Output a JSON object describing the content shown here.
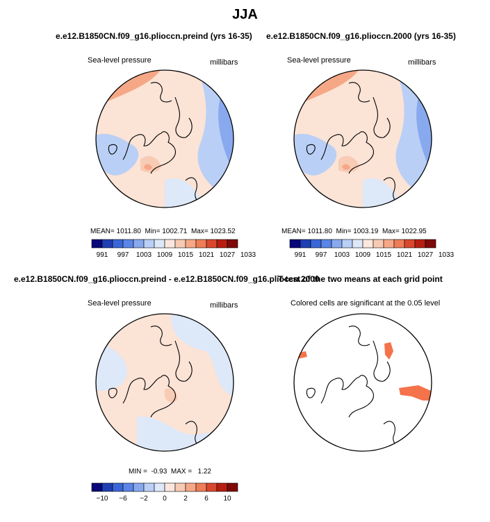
{
  "title": "JJA",
  "panels": {
    "top_left": {
      "title": "e.e12.B1850CN.f09_g16.pliocсn.preind (yrs 16-35)",
      "variable": "Sea-level pressure",
      "units": "millibars",
      "stats": {
        "mean_label": "MEAN=",
        "mean": "1011.80",
        "min_label": "Min=",
        "min": "1002.71",
        "max_label": "Max=",
        "max": "1023.52"
      }
    },
    "top_right": {
      "title": "e.e12.B1850CN.f09_g16.pliocсn.2000 (yrs 16-35)",
      "variable": "Sea-level pressure",
      "units": "millibars",
      "stats": {
        "mean_label": "MEAN=",
        "mean": "1011.80",
        "min_label": "Min=",
        "min": "1003.19",
        "max_label": "Max=",
        "max": "1022.95"
      }
    },
    "bottom_left": {
      "title": "e.e12.B1850CN.f09_g16.pliocсn.preind - e.e12.B1850CN.f09_g16.pliocсn.2000",
      "variable": "Sea-level pressure",
      "units": "millibars",
      "stats": {
        "min_label": "MIN =",
        "min": "-0.93",
        "max_label": "MAX =",
        "max": "1.22"
      }
    },
    "bottom_right": {
      "title": "T-test of the two means at each grid point",
      "subtitle": "Colored cells are significant at the 0.05 level",
      "significant_color": "#f4734a"
    }
  },
  "colorbars": {
    "pressure": {
      "tick_labels": [
        "991",
        "997",
        "1003",
        "1009",
        "1015",
        "1021",
        "1027",
        "1033"
      ],
      "colors": [
        "#08087a",
        "#1f3fb3",
        "#3a67d8",
        "#5b85e6",
        "#88a9ee",
        "#b9cff5",
        "#dde8f9",
        "#fbe7de",
        "#f8cab4",
        "#f6a886",
        "#ee7d58",
        "#d9482e",
        "#b71e12",
        "#7d0a08"
      ]
    },
    "difference": {
      "tick_labels": [
        "−10",
        "−6",
        "−2",
        "0",
        "2",
        "6",
        "10"
      ],
      "colors": [
        "#08087a",
        "#1f3fb3",
        "#3a67d8",
        "#5b85e6",
        "#88a9ee",
        "#b9cff5",
        "#dde8f9",
        "#fbe7de",
        "#f8cab4",
        "#f6a886",
        "#ee7d58",
        "#d9482e",
        "#b71e12",
        "#7d0a08"
      ]
    }
  },
  "palette": {
    "peach": "#fbe3d6",
    "light_salmon": "#f8cbb4",
    "salmon": "#f6a886",
    "orange": "#ee7d58",
    "pale_blue": "#dde8f9",
    "light_blue": "#b9cff5",
    "blue": "#88a9ee",
    "mid_blue": "#5b85e6"
  }
}
